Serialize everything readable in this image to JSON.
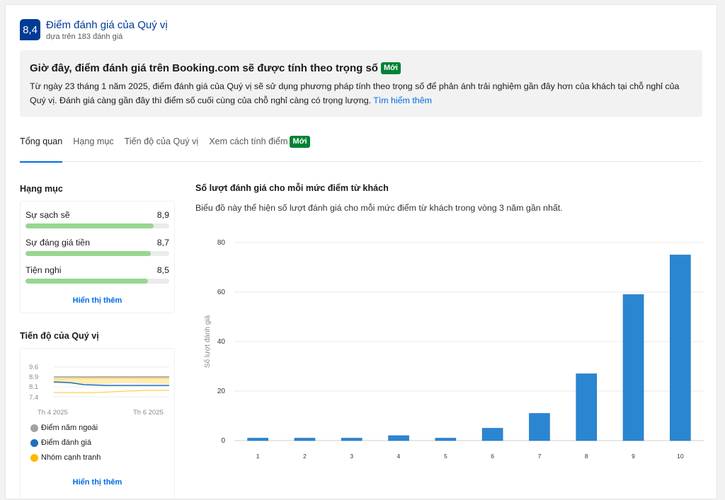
{
  "score": {
    "value": "8,4",
    "title": "Điểm đánh giá của Quý vị",
    "subtitle": "dựa trên 183 đánh giá"
  },
  "notice": {
    "title": "Giờ đây, điểm đánh giá trên Booking.com sẽ được tính theo trọng số",
    "badge": "Mới",
    "body": "Từ ngày 23 tháng 1 năm 2025, điểm đánh giá của Quý vị sẽ sử dụng phương pháp tính theo trọng số để phản ánh trải nghiệm gần đây hơn của khách tại chỗ nghỉ của Quý vị. Đánh giá càng gần đây thì điểm số cuối cùng của chỗ nghỉ càng có trọng lượng.",
    "link": "Tìm hiểm thêm"
  },
  "tabs": [
    {
      "label": "Tổng quan",
      "active": true
    },
    {
      "label": "Hạng mục",
      "active": false
    },
    {
      "label": "Tiến độ của Quý vị",
      "active": false
    },
    {
      "label": "Xem cách tính điểm",
      "active": false,
      "badge": "Mới"
    }
  ],
  "categories": {
    "title": "Hạng mục",
    "items": [
      {
        "label": "Sự sạch sẽ",
        "value": "8,9",
        "fill": 0.89
      },
      {
        "label": "Sự đáng giá tiền",
        "value": "8,7",
        "fill": 0.87
      },
      {
        "label": "Tiện nghi",
        "value": "8,5",
        "fill": 0.85
      }
    ],
    "show_more": "Hiển thị thêm"
  },
  "progress": {
    "title": "Tiến độ của Quý vị",
    "y_ticks": [
      "9.6",
      "8.9",
      "8.1",
      "7.4"
    ],
    "x_ticks": [
      "Th 4 2025",
      "Th 6 2025"
    ],
    "legend": [
      {
        "label": "Điểm năm ngoái",
        "color": "#a2a2a2"
      },
      {
        "label": "Điểm đánh giá",
        "color": "#1d6fc0"
      },
      {
        "label": "Nhóm cạnh tranh",
        "color": "#ffb700"
      }
    ],
    "show_more": "Hiển thị thêm"
  },
  "chart_data": {
    "type": "bar",
    "title": "Số lượt đánh giá cho mỗi mức điểm từ khách",
    "subtitle": "Biểu đồ này thể hiện số lượt đánh giá cho mỗi mức điểm từ khách trong vòng 3 năm gần nhất.",
    "ylabel": "Số lượt đánh giá",
    "xlabel": "",
    "categories": [
      "1",
      "2",
      "3",
      "4",
      "5",
      "6",
      "7",
      "8",
      "9",
      "10"
    ],
    "values": [
      1,
      1,
      1,
      2,
      1,
      5,
      11,
      27,
      59,
      75
    ],
    "ylim": [
      0,
      80
    ],
    "yticks": [
      0,
      20,
      40,
      60,
      80
    ],
    "grid": true,
    "bar_color": "#2b86d2"
  }
}
